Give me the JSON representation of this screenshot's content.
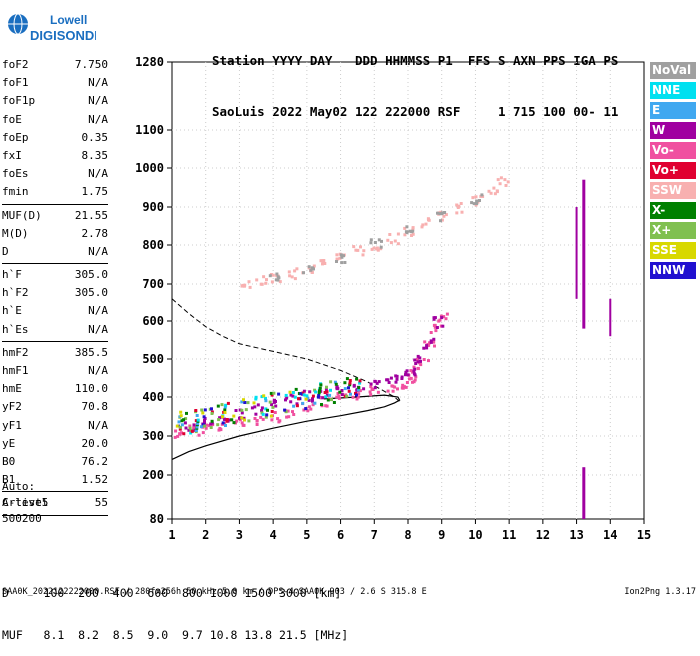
{
  "logo": {
    "line1": "Lowell",
    "line2": "DIGISONDE"
  },
  "header": {
    "labels": "Station YYYY DAY   DDD HHMMSS P1  FFS S AXN PPS IGA PS",
    "values": "SaoLuis 2022 May02 122 222000 RSF     1 715 100 00- 11"
  },
  "params": {
    "group1": [
      {
        "k": "foF2",
        "v": "7.750"
      },
      {
        "k": "foF1",
        "v": "N/A"
      },
      {
        "k": "foF1p",
        "v": "N/A"
      },
      {
        "k": "foE",
        "v": "N/A"
      },
      {
        "k": "foEp",
        "v": "0.35"
      },
      {
        "k": "fxI",
        "v": "8.35"
      },
      {
        "k": "foEs",
        "v": "N/A"
      },
      {
        "k": "fmin",
        "v": "1.75"
      }
    ],
    "group2": [
      {
        "k": "MUF(D)",
        "v": "21.55"
      },
      {
        "k": "M(D)",
        "v": "2.78"
      },
      {
        "k": "D",
        "v": "N/A"
      }
    ],
    "group3": [
      {
        "k": "h`F",
        "v": "305.0"
      },
      {
        "k": "h`F2",
        "v": "305.0"
      },
      {
        "k": "h`E",
        "v": "N/A"
      },
      {
        "k": "h`Es",
        "v": "N/A"
      }
    ],
    "group4": [
      {
        "k": "hmF2",
        "v": "385.5"
      },
      {
        "k": "hmF1",
        "v": "N/A"
      },
      {
        "k": "hmE",
        "v": "110.0"
      },
      {
        "k": "yF2",
        "v": "70.8"
      },
      {
        "k": "yF1",
        "v": "N/A"
      },
      {
        "k": "yE",
        "v": "20.0"
      },
      {
        "k": "B0",
        "v": "76.2"
      },
      {
        "k": "B1",
        "v": "1.52"
      }
    ],
    "group5": [
      {
        "k": "C-level",
        "v": "55"
      }
    ]
  },
  "auto": {
    "line1": "Auto:",
    "line2": "Artist5",
    "line3": "500200"
  },
  "legend": [
    {
      "label": "NoVal",
      "color": "#a0a0a0"
    },
    {
      "label": "NNE",
      "color": "#00e0f0"
    },
    {
      "label": "E",
      "color": "#40a8f0"
    },
    {
      "label": "W",
      "color": "#a000a0"
    },
    {
      "label": "Vo-",
      "color": "#f050a0"
    },
    {
      "label": "Vo+",
      "color": "#e00030"
    },
    {
      "label": "SSW",
      "color": "#f8b0b0"
    },
    {
      "label": "X-",
      "color": "#008000"
    },
    {
      "label": "X+",
      "color": "#80c050"
    },
    {
      "label": "SSE",
      "color": "#d8d800"
    },
    {
      "label": "NNW",
      "color": "#2010d0"
    }
  ],
  "dtable": {
    "row1": "D     100  200  400  600  800 1000 1500 3000 [km]",
    "row2": "MUF   8.1  8.2  8.5  9.0  9.7 10.8 13.8 21.5 [MHz]"
  },
  "footer": "SAA0K_2022122222000.RSF / 280fx256h 50 kHz 5.0 km / DPS-4 SAA0K 903 / 2.6 S 315.8 E",
  "version": "Ion2Png 1.3.17",
  "chart_data": {
    "type": "scatter",
    "title": "",
    "xlabel": "",
    "ylabel": "",
    "x_ticks": [
      1,
      2,
      3,
      4,
      5,
      6,
      7,
      8,
      9,
      10,
      11,
      12,
      13,
      14,
      15
    ],
    "y_ticks": [
      80,
      200,
      300,
      400,
      500,
      600,
      700,
      800,
      900,
      1000,
      1100,
      1280
    ],
    "xlim": [
      1,
      15
    ],
    "ylim": [
      80,
      1280
    ],
    "y_scale": "nonlinear (ionogram virtual height)",
    "series": [
      {
        "name": "Vo-",
        "color": "#f050a0",
        "x": [
          1.2,
          1.6,
          2.0,
          2.5,
          3.0,
          3.5,
          4.0,
          4.5,
          5.0,
          5.5,
          6.0,
          6.5,
          7.0,
          7.5,
          7.8,
          8.0,
          8.2,
          8.4,
          8.6,
          8.8,
          9.0
        ],
        "y": [
          310,
          318,
          325,
          330,
          335,
          342,
          352,
          365,
          378,
          390,
          400,
          410,
          420,
          430,
          440,
          450,
          470,
          500,
          540,
          580,
          610
        ]
      },
      {
        "name": "W",
        "color": "#a000a0",
        "x": [
          1.5,
          2.0,
          2.5,
          3.0,
          3.5,
          4.0,
          4.5,
          5.0,
          5.5,
          6.0,
          6.5,
          7.0,
          7.5,
          7.8,
          8.0,
          8.3,
          8.6,
          8.9
        ],
        "y": [
          330,
          340,
          348,
          360,
          372,
          385,
          396,
          406,
          414,
          422,
          430,
          438,
          448,
          458,
          470,
          500,
          545,
          600
        ]
      },
      {
        "name": "SSW",
        "color": "#f8b0b0",
        "x": [
          3.2,
          3.6,
          4.0,
          4.5,
          5.0,
          5.5,
          6.0,
          6.5,
          7.0,
          7.5,
          8.0,
          8.5,
          9.0,
          9.5,
          10.0,
          10.5,
          10.8
        ],
        "y": [
          700,
          710,
          720,
          730,
          740,
          755,
          770,
          790,
          800,
          820,
          840,
          860,
          880,
          900,
          920,
          950,
          970
        ]
      },
      {
        "name": "NoVal",
        "color": "#a0a0a0",
        "x": [
          4.0,
          5.0,
          6.0,
          7.0,
          8.0,
          9.0,
          10.0
        ],
        "y": [
          720,
          740,
          770,
          805,
          840,
          880,
          925
        ]
      }
    ],
    "profile_solid": {
      "x": [
        1.0,
        1.5,
        2.0,
        3.0,
        4.0,
        5.0,
        6.0,
        6.8,
        7.3,
        7.6,
        7.75,
        7.7,
        7.3,
        6.5,
        5.5
      ],
      "y": [
        240,
        260,
        275,
        300,
        320,
        338,
        352,
        365,
        375,
        385,
        392,
        400,
        405,
        400,
        395
      ]
    },
    "profile_dashed": {
      "x": [
        1.0,
        1.5,
        2.0,
        2.5,
        3.0,
        4.0,
        5.0,
        6.0,
        6.8,
        7.3,
        7.6,
        7.8
      ],
      "y": [
        660,
        620,
        585,
        560,
        540,
        520,
        500,
        470,
        440,
        415,
        400,
        385
      ]
    }
  }
}
